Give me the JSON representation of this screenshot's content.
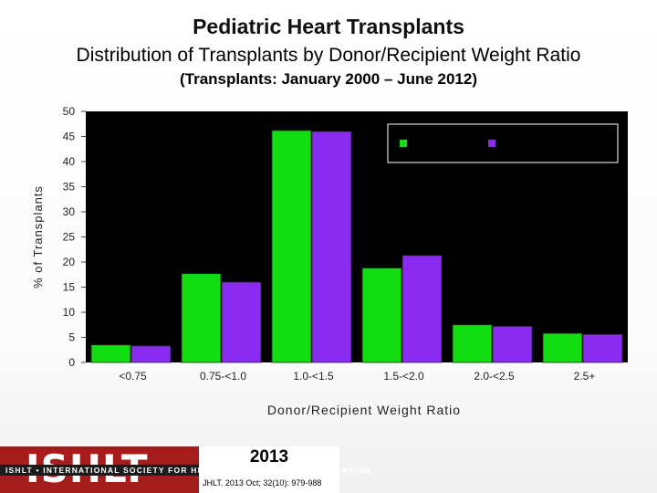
{
  "title": "Pediatric Heart Transplants",
  "subtitle": "Distribution of Transplants by Donor/Recipient Weight Ratio",
  "period": "(Transplants: January 2000 – June 2012)",
  "colors": {
    "green": "#11dd11",
    "purple": "#8a2cf0",
    "plot_bg": "#000000",
    "axis_text": "#222222"
  },
  "chart_data": {
    "type": "bar",
    "title": "Distribution of Transplants by Donor/Recipient Weight Ratio",
    "xlabel": "Donor/Recipient Weight Ratio",
    "ylabel": "% of Transplants",
    "ylim": [
      0,
      50
    ],
    "yticks": [
      0,
      5,
      10,
      15,
      20,
      25,
      30,
      35,
      40,
      45,
      50
    ],
    "categories": [
      "<0.75",
      "0.75-<1.0",
      "1.0-<1.5",
      "1.5-<2.0",
      "2.0-<2.5",
      "2.5+"
    ],
    "series": [
      {
        "name": "",
        "color": "#11dd11",
        "values": [
          3.5,
          17.7,
          46.2,
          18.8,
          7.5,
          5.8
        ]
      },
      {
        "name": "",
        "color": "#8a2cf0",
        "values": [
          3.3,
          16.0,
          46.0,
          21.3,
          7.2,
          5.6
        ]
      }
    ],
    "legend_position": "top-right",
    "grid": false
  },
  "footer": {
    "logo_text": "ISHLT",
    "logo_full": "ISHLT • INTERNATIONAL SOCIETY FOR HEART AND LUNG TRANSPLANTATION",
    "year": "2013",
    "citation": "JHLT. 2013 Oct; 32(10): 979-988"
  }
}
